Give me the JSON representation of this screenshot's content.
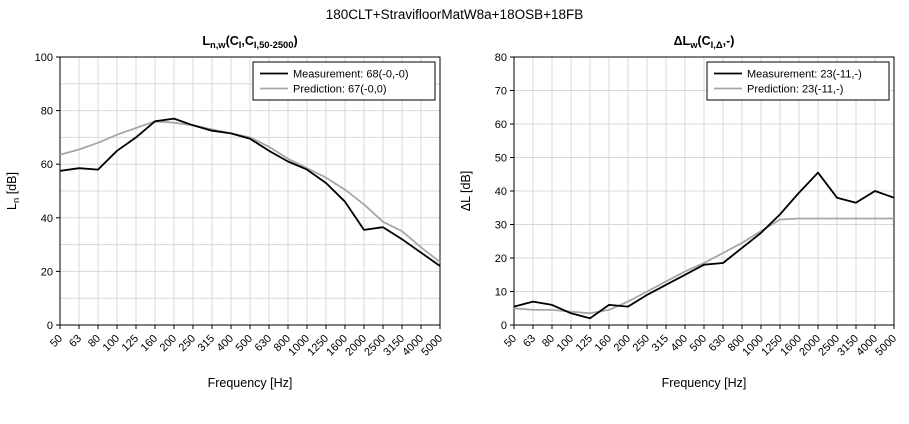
{
  "page_title": "180CLT+StravifloorMatW8a+18OSB+18FB",
  "chart_data": [
    {
      "type": "line",
      "title_parts": [
        {
          "t": "L"
        },
        {
          "s": "n,w"
        },
        {
          "t": "(C"
        },
        {
          "s": "I"
        },
        {
          "t": ",C"
        },
        {
          "s": "I,50-2500"
        },
        {
          "t": ")"
        }
      ],
      "ylabel_parts": [
        {
          "t": "L"
        },
        {
          "s": "n"
        },
        {
          "t": " [dB]"
        }
      ],
      "xlabel": "Frequency [Hz]",
      "ylim": [
        0,
        100
      ],
      "ygrid_step": 10,
      "ylabel_step": 20,
      "grid": true,
      "legend_position": "top-right",
      "categories": [
        "50",
        "63",
        "80",
        "100",
        "125",
        "160",
        "200",
        "250",
        "315",
        "400",
        "500",
        "630",
        "800",
        "1000",
        "1250",
        "1600",
        "2000",
        "2500",
        "3150",
        "4000",
        "5000"
      ],
      "series": [
        {
          "name": "Measurement: 68(-0,-0)",
          "color": "#000000",
          "values": [
            57.5,
            58.5,
            58,
            65,
            70,
            76,
            77,
            74.5,
            72.5,
            71.5,
            69.5,
            65,
            61,
            58,
            53,
            46,
            35.5,
            36.5,
            32,
            27,
            22
          ]
        },
        {
          "name": "Prediction: 67(-0,0)",
          "color": "#a6a6a6",
          "values": [
            63.5,
            65.5,
            68,
            71,
            73.5,
            76,
            75.5,
            74.5,
            73,
            71.5,
            70,
            66.5,
            62,
            58.5,
            55,
            50.5,
            45,
            38.5,
            35,
            29,
            23.5
          ]
        }
      ]
    },
    {
      "type": "line",
      "title_parts": [
        {
          "t": "ΔL"
        },
        {
          "s": "w"
        },
        {
          "t": "(C"
        },
        {
          "s": "I,Δ"
        },
        {
          "t": ",-)"
        }
      ],
      "ylabel_parts": [
        {
          "t": "ΔL [dB]"
        }
      ],
      "xlabel": "Frequency [Hz]",
      "ylim": [
        0,
        80
      ],
      "ygrid_step": 10,
      "ylabel_step": 10,
      "grid": true,
      "legend_position": "top-right",
      "categories": [
        "50",
        "63",
        "80",
        "100",
        "125",
        "160",
        "200",
        "250",
        "315",
        "400",
        "500",
        "630",
        "800",
        "1000",
        "1250",
        "1600",
        "2000",
        "2500",
        "3150",
        "4000",
        "5000"
      ],
      "series": [
        {
          "name": "Measurement: 23(-11,-)",
          "color": "#000000",
          "values": [
            5.5,
            7,
            6,
            3.5,
            2,
            6,
            5.5,
            9,
            12,
            15,
            18,
            18.5,
            23,
            27.5,
            33,
            39.5,
            45.5,
            38,
            36.5,
            40,
            38
          ]
        },
        {
          "name": "Prediction: 23(-11,-)",
          "color": "#a6a6a6",
          "values": [
            5,
            4.5,
            4.5,
            4,
            3.5,
            4.5,
            7,
            10,
            13,
            16,
            18.5,
            21.5,
            24.5,
            28,
            31.5,
            31.8,
            31.8,
            31.8,
            31.8,
            31.8,
            31.8
          ]
        }
      ]
    }
  ]
}
